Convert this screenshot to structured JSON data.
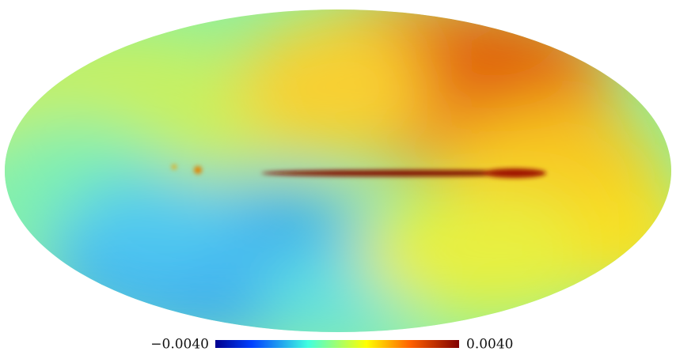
{
  "colorbar": {
    "min_label": "−0.0040",
    "max_label": "0.0040"
  }
}
